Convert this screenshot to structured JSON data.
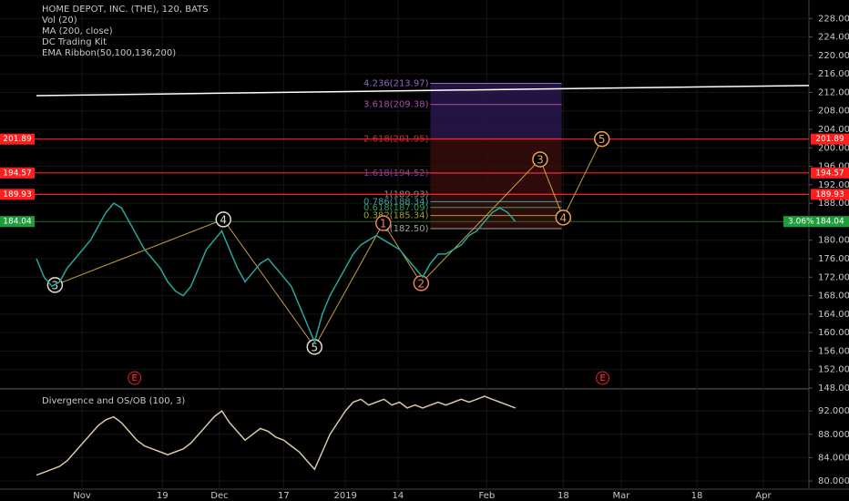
{
  "chart_data": [
    {
      "type": "line",
      "title": "HOME DEPOT, INC. (THE), 120, BATS",
      "indicators": [
        "Vol (20)",
        "MA (200, close)",
        "DC Trading Kit",
        "EMA Ribbon(50,100,136,200)"
      ],
      "color": "#26a69a",
      "values": [
        176,
        172,
        170,
        171,
        174,
        176,
        178,
        180,
        183,
        186,
        188,
        187,
        184,
        181,
        178,
        176,
        174,
        171,
        169,
        168,
        170,
        174,
        178,
        180,
        182,
        178,
        174,
        171,
        173,
        175,
        176,
        174,
        172,
        170,
        166,
        162,
        158,
        164,
        168,
        171,
        174,
        177,
        179,
        180,
        181,
        180,
        179,
        178,
        176,
        174,
        172,
        175,
        177,
        177,
        178,
        179,
        181,
        182,
        184,
        186,
        187,
        186,
        184.04
      ],
      "xlim": [
        0,
        100
      ],
      "xticks": [
        {
          "value": 5.9,
          "label": "Nov"
        },
        {
          "value": 16.3,
          "label": "19"
        },
        {
          "value": 23.7,
          "label": "Dec"
        },
        {
          "value": 32.0,
          "label": "17"
        },
        {
          "value": 40.0,
          "label": "2019"
        },
        {
          "value": 46.8,
          "label": "14"
        },
        {
          "value": 58.3,
          "label": "Feb"
        },
        {
          "value": 68.2,
          "label": "18"
        },
        {
          "value": 75.7,
          "label": "Mar"
        },
        {
          "value": 85.5,
          "label": "18"
        },
        {
          "value": 94.1,
          "label": "Apr"
        }
      ],
      "ylim": [
        148,
        232
      ],
      "yticks": [
        {
          "value": 148,
          "label": "148.00"
        },
        {
          "value": 152,
          "label": "152.00"
        },
        {
          "value": 156,
          "label": "156.00"
        },
        {
          "value": 160,
          "label": "160.00"
        },
        {
          "value": 164,
          "label": "164.00"
        },
        {
          "value": 168,
          "label": "168.00"
        },
        {
          "value": 172,
          "label": "172.00"
        },
        {
          "value": 176,
          "label": "176.00"
        },
        {
          "value": 180,
          "label": "180.00"
        },
        {
          "value": 184,
          "label": "184.00"
        },
        {
          "value": 188,
          "label": "188.00"
        },
        {
          "value": 192,
          "label": "192.00"
        },
        {
          "value": 196,
          "label": "196.00"
        },
        {
          "value": 200,
          "label": "200.00"
        },
        {
          "value": 204,
          "label": "204.00"
        },
        {
          "value": 208,
          "label": "208.00"
        },
        {
          "value": 212,
          "label": "212.00"
        },
        {
          "value": 216,
          "label": "216.00"
        },
        {
          "value": 220,
          "label": "220.00"
        },
        {
          "value": 224,
          "label": "224.00"
        },
        {
          "value": 228,
          "label": "228.00"
        }
      ],
      "levels": [
        {
          "value": 201.89,
          "color": "#ff1e1e"
        },
        {
          "value": 194.57,
          "color": "#ff1e1e"
        },
        {
          "value": 189.93,
          "color": "#ff1e1e"
        },
        {
          "value": 184.04,
          "color": "#1e9e3a"
        }
      ],
      "last_change": "3.06%",
      "trendline": [
        211.3,
        213.5
      ],
      "fib": [
        {
          "label": "4.236(213.97)",
          "value": 213.97,
          "color": "#8c6cc8"
        },
        {
          "label": "3.618(209.38)",
          "value": 209.38,
          "color": "#b04cb0"
        },
        {
          "label": "2.618(201.95)",
          "value": 201.95,
          "color": "#d03030"
        },
        {
          "label": "1.618(194.52)",
          "value": 194.52,
          "color": "#5050d0"
        },
        {
          "label": "1(189.93)",
          "value": 189.93,
          "color": "#9a8a8a"
        },
        {
          "label": "0.786(188.34)",
          "value": 188.34,
          "color": "#3ca0a0"
        },
        {
          "label": "0.618(187.09)",
          "value": 187.09,
          "color": "#30a060"
        },
        {
          "label": "0.382(185.34)",
          "value": 185.34,
          "color": "#a0a030"
        },
        {
          "label": "0(182.50)",
          "value": 182.5,
          "color": "#a0a0a0"
        }
      ],
      "waves": [
        {
          "label": "3",
          "x": 2.4,
          "y": 170.3,
          "color": "#e0e0d0"
        },
        {
          "label": "4",
          "x": 24.2,
          "y": 184.5,
          "color": "#e0e0d0"
        },
        {
          "label": "5",
          "x": 36,
          "y": 156.9,
          "color": "#e0e0d0"
        },
        {
          "label": "1",
          "x": 44.9,
          "y": 183.7,
          "color": "#f08060"
        },
        {
          "label": "2",
          "x": 49.8,
          "y": 170.7,
          "color": "#f08060"
        },
        {
          "label": "3",
          "x": 65.2,
          "y": 197.5,
          "color": "#f0a050"
        },
        {
          "label": "4",
          "x": 68.2,
          "y": 184.9,
          "color": "#f0a050"
        },
        {
          "label": "5",
          "x": 73.2,
          "y": 201.9,
          "color": "#f0a050"
        }
      ],
      "events": [
        {
          "label": "E",
          "x": 12.7
        },
        {
          "label": "E",
          "x": 73.3
        }
      ]
    },
    {
      "type": "line",
      "title": "Divergence and OS/OB (100, 3)",
      "color": "#d8c8a8",
      "values": [
        81,
        81.5,
        82,
        82.5,
        83.5,
        85,
        86.5,
        88,
        89.5,
        90.5,
        91,
        90,
        88.5,
        87,
        86,
        85.5,
        85,
        84.5,
        85,
        85.5,
        86.5,
        88,
        89.5,
        91,
        92,
        90,
        88.5,
        87,
        88,
        89,
        88.5,
        87.5,
        87,
        86,
        85,
        83.5,
        82,
        85,
        88,
        90,
        92,
        93.5,
        94,
        93,
        93.5,
        94,
        93,
        93.5,
        92.5,
        93,
        92.5,
        93,
        93.5,
        93,
        93.5,
        94,
        93.5,
        94,
        94.5,
        94,
        93.5,
        93,
        92.5
      ],
      "xlim": [
        0,
        100
      ],
      "ylim": [
        78.6,
        95.3
      ],
      "yticks": [
        {
          "value": 80,
          "label": "80.0000"
        },
        {
          "value": 84,
          "label": "84.0000"
        },
        {
          "value": 88,
          "label": "88.0000"
        },
        {
          "value": 92,
          "label": "92.0000"
        }
      ]
    }
  ]
}
